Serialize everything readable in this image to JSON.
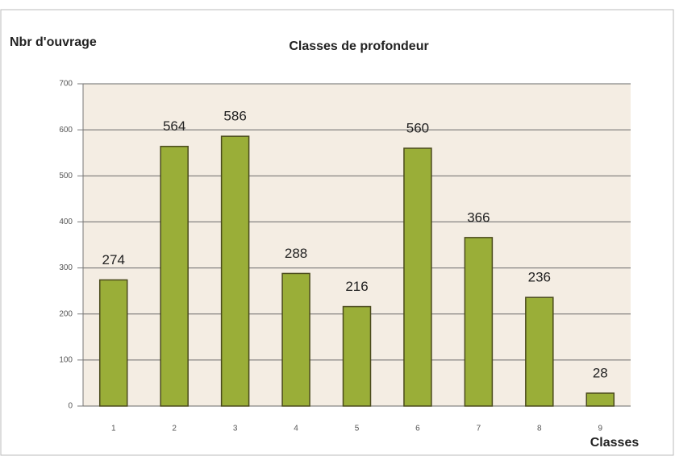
{
  "chart_data": {
    "type": "bar",
    "title": "Classes de profondeur",
    "y_label": "Nbr d'ouvrage",
    "x_label": "Classes",
    "categories": [
      "1",
      "2",
      "3",
      "4",
      "5",
      "6",
      "7",
      "8",
      "9"
    ],
    "values": [
      274,
      564,
      586,
      288,
      216,
      560,
      366,
      236,
      28
    ],
    "color": "#9aae38",
    "ylim": [
      0,
      700
    ],
    "yticks": [
      0,
      100,
      200,
      300,
      400,
      500,
      600,
      700
    ],
    "grid": true
  }
}
